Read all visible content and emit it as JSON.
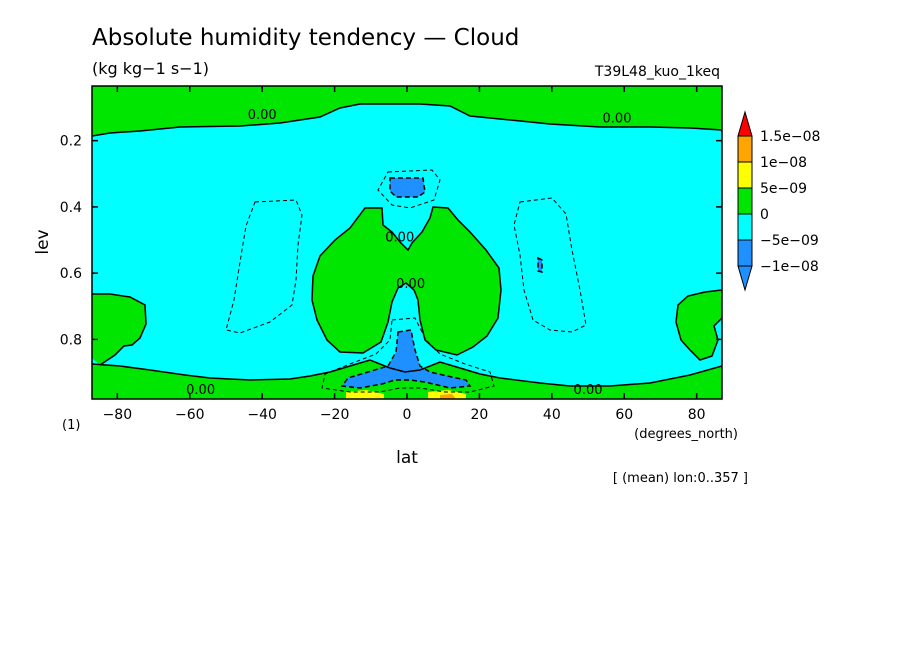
{
  "chart_data": {
    "type": "heatmap",
    "title": "Absolute humidity tendency — Cloud",
    "units": "(kg kg−1 s−1)",
    "run_label": "T39L48_kuo_1keq",
    "xlabel": "lat",
    "x_units": "(degrees_north)",
    "ylabel": "lev",
    "y_units": "(1)",
    "footnote": "[ (mean) lon:0..357 ]",
    "xlim": [
      -87,
      87
    ],
    "ylim": [
      0,
      1
    ],
    "y_inverted": true,
    "x_ticks": [
      {
        "value": -80,
        "label": "−80"
      },
      {
        "value": -60,
        "label": "−60"
      },
      {
        "value": -40,
        "label": "−40"
      },
      {
        "value": -20,
        "label": "−20"
      },
      {
        "value": 0,
        "label": "0"
      },
      {
        "value": 20,
        "label": "20"
      },
      {
        "value": 40,
        "label": "40"
      },
      {
        "value": 60,
        "label": "60"
      },
      {
        "value": 80,
        "label": "80"
      }
    ],
    "y_ticks": [
      {
        "value": 0.2,
        "label": "0.2"
      },
      {
        "value": 0.4,
        "label": "0.4"
      },
      {
        "value": 0.6,
        "label": "0.6"
      },
      {
        "value": 0.8,
        "label": "0.8"
      }
    ],
    "colorbar": [
      {
        "label": "1.5e−08",
        "color": "#ff0000"
      },
      {
        "label": "1e−08",
        "color": "#ffa500"
      },
      {
        "label": "5e−09",
        "color": "#ffff00"
      },
      {
        "label": "0",
        "color": "#00e600"
      },
      {
        "label": "−5e−09",
        "color": "#00ffff"
      },
      {
        "label": "−1e−08",
        "color": "#1e90ff"
      }
    ],
    "contour_labels": [
      {
        "text": "0.00",
        "lat": -40,
        "lev": 0.12
      },
      {
        "text": "0.00",
        "lat": 58,
        "lev": 0.13
      },
      {
        "text": "0.00",
        "lat": -2,
        "lev": 0.49
      },
      {
        "text": "0.00",
        "lat": 1,
        "lev": 0.63
      },
      {
        "text": "0.00",
        "lat": -57,
        "lev": 0.95
      },
      {
        "text": "0.00",
        "lat": 50,
        "lev": 0.95
      }
    ]
  }
}
